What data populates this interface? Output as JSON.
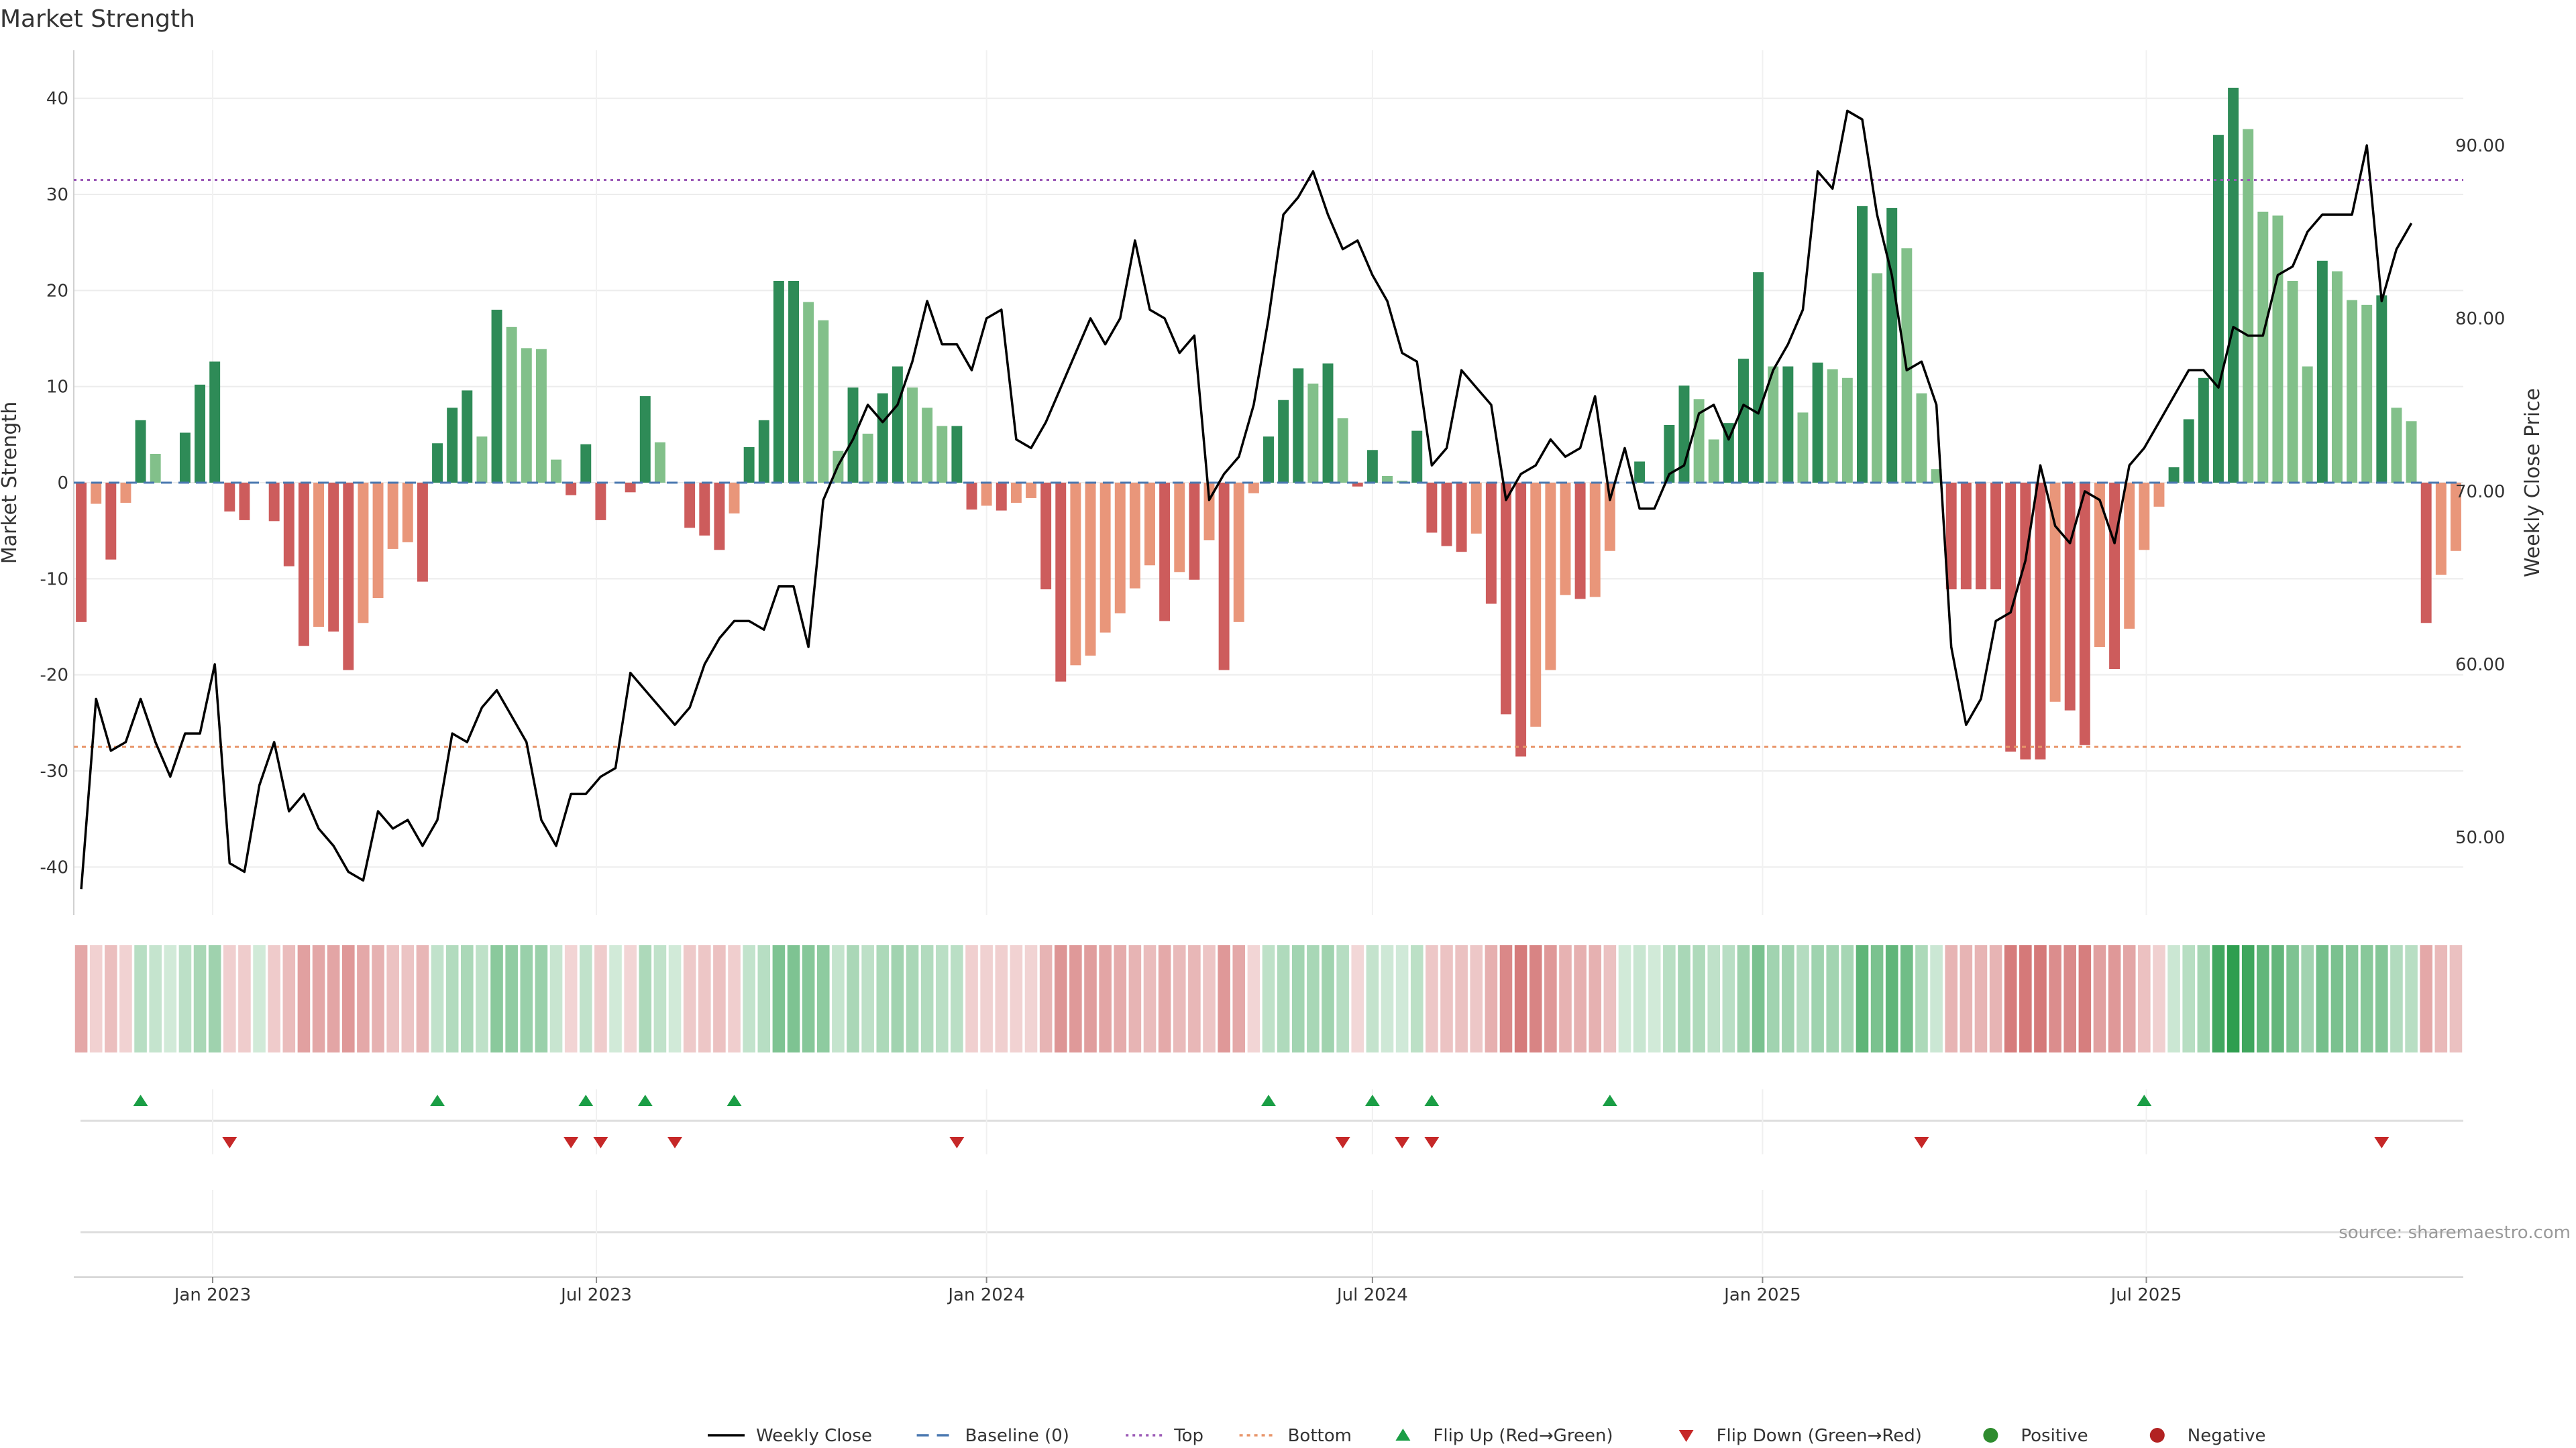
{
  "chart_data": {
    "type": "bar",
    "title": "Market Strength",
    "ylabel": "Market Strength",
    "y2label": "Weekly Close Price",
    "ylim": [
      -45,
      45
    ],
    "y2lim": [
      45.5,
      95.5
    ],
    "yticks": [
      40,
      30,
      20,
      10,
      0,
      -10,
      -20,
      -30,
      -40
    ],
    "y2ticks": [
      "90.00",
      "80.00",
      "70.00",
      "60.00",
      "50.00"
    ],
    "x_start": "2022-10-31",
    "x_step_days": 7,
    "xticks": [
      {
        "label": "Jan 2023",
        "date": "2023-01-01"
      },
      {
        "label": "Jul 2023",
        "date": "2023-07-01"
      },
      {
        "label": "Jan 2024",
        "date": "2024-01-01"
      },
      {
        "label": "Jul 2024",
        "date": "2024-07-01"
      },
      {
        "label": "Jan 2025",
        "date": "2025-01-01"
      },
      {
        "label": "Jul 2025",
        "date": "2025-07-01"
      }
    ],
    "top_line": 31.5,
    "bottom_line": -27.5,
    "grid": true,
    "legend_position": "bottom",
    "colors": {
      "pos_strong": "#2e8b57",
      "pos_weak": "#82c08a",
      "neg_strong": "#cd5c5c",
      "neg_weak": "#e9967a",
      "line": "#000000",
      "top": "#9b59b6",
      "bottom": "#e8956a",
      "baseline": "#4a78b0",
      "flip_up": "#1a9e45",
      "flip_down": "#c62828"
    },
    "strength": [
      -14.5,
      -2.2,
      -8,
      -2.1,
      6.5,
      3,
      0,
      5.2,
      10.2,
      12.6,
      -3,
      -3.9,
      0,
      -4,
      -8.7,
      -17,
      -15,
      -15.5,
      -19.5,
      -14.6,
      -12,
      -6.9,
      -6.2,
      -10.3,
      4.1,
      7.8,
      9.6,
      4.8,
      18,
      16.2,
      14,
      13.9,
      2.4,
      -1.3,
      4,
      -3.9,
      0,
      -1,
      9,
      4.2,
      0,
      -4.7,
      -5.5,
      -7,
      -3.2,
      3.7,
      6.5,
      21,
      21,
      18.8,
      16.9,
      3.3,
      9.9,
      5.1,
      9.3,
      12.1,
      9.9,
      7.8,
      5.9,
      5.9,
      -2.8,
      -2.4,
      -2.9,
      -2.1,
      -1.6,
      -11.1,
      -20.7,
      -19,
      -18,
      -15.6,
      -13.6,
      -11,
      -8.6,
      -14.4,
      -9.3,
      -10.1,
      -6,
      -19.5,
      -14.5,
      -1.1,
      4.8,
      8.6,
      11.9,
      10.3,
      12.4,
      6.7,
      -0.4,
      3.4,
      0.7,
      0.2,
      5.4,
      -5.2,
      -6.6,
      -7.2,
      -5.3,
      -12.6,
      -24.1,
      -28.5,
      -25.4,
      -19.5,
      -11.7,
      -12.1,
      -11.9,
      -7.1,
      0,
      2.2,
      0,
      6,
      10.1,
      8.7,
      4.5,
      6.2,
      12.9,
      21.9,
      12.1,
      12.1,
      7.3,
      12.5,
      11.8,
      10.9,
      28.8,
      21.8,
      28.6,
      24.4,
      9.3,
      1.4,
      -11.1,
      -11.1,
      -11.1,
      -11.1,
      -28,
      -28.8,
      -28.8,
      -22.8,
      -23.7,
      -27.3,
      -17.1,
      -19.4,
      -15.2,
      -7,
      -2.5,
      1.6,
      6.6,
      10.9,
      36.2,
      41.1,
      36.8,
      28.2,
      27.8,
      21,
      12.1,
      23.1,
      22,
      19,
      18.5,
      19.5,
      7.8,
      6.4,
      -14.6,
      -9.6,
      -7.1
    ],
    "weekly_close": [
      47,
      58,
      55,
      55.5,
      58,
      55.5,
      53.5,
      56,
      56,
      60,
      48.5,
      48,
      53,
      55.5,
      51.5,
      52.5,
      50.5,
      49.5,
      48,
      47.5,
      51.5,
      50.5,
      51,
      49.5,
      51,
      56,
      55.5,
      57.5,
      58.5,
      57,
      55.5,
      51,
      49.5,
      52.5,
      52.5,
      53.5,
      54,
      59.5,
      58.5,
      57.5,
      56.5,
      57.5,
      60,
      61.5,
      62.5,
      62.5,
      62,
      64.5,
      64.5,
      61,
      69.5,
      71.5,
      73,
      75,
      74,
      75,
      77.5,
      81,
      78.5,
      78.5,
      77,
      80,
      80.5,
      73,
      72.5,
      74,
      76,
      78,
      80,
      78.5,
      80,
      84.5,
      80.5,
      80,
      78,
      79,
      69.5,
      71,
      72,
      75,
      80,
      86,
      87,
      88.5,
      86,
      84,
      84.5,
      82.5,
      81,
      78,
      77.5,
      71.5,
      72.5,
      77,
      76,
      75,
      69.5,
      71,
      71.5,
      73,
      72,
      72.5,
      75.5,
      69.5,
      72.5,
      69,
      69,
      71,
      71.5,
      74.5,
      75,
      73,
      75,
      74.5,
      77,
      78.5,
      80.5,
      88.5,
      87.5,
      92,
      91.5,
      86,
      82.5,
      77,
      77.5,
      75,
      61,
      56.5,
      58,
      62.5,
      63,
      66,
      71.5,
      68,
      67,
      70,
      69.5,
      67,
      71.5,
      72.5,
      74,
      75.5,
      77,
      77,
      76,
      79.5,
      79,
      79,
      82.5,
      83,
      85,
      86,
      86,
      86,
      90,
      81,
      84,
      85.5
    ]
  },
  "heat_strip": {
    "label": ""
  },
  "flip_markers": {
    "up_indices": [
      4,
      24,
      34,
      38,
      44,
      80,
      87,
      91,
      103,
      139
    ],
    "down_indices": [
      10,
      33,
      35,
      40,
      59,
      85,
      89,
      91,
      124,
      155
    ]
  },
  "source_text": "source: sharemaestro.com",
  "legend": [
    {
      "label": "Weekly Close",
      "kind": "line"
    },
    {
      "label": "Baseline (0)",
      "kind": "dash"
    },
    {
      "label": "Top",
      "kind": "dotted"
    },
    {
      "label": "Bottom",
      "kind": "dotted2"
    },
    {
      "label": "Flip Up (Red→Green)",
      "kind": "tri-up"
    },
    {
      "label": "Flip Down (Green→Red)",
      "kind": "tri-down"
    },
    {
      "label": "Positive",
      "kind": "dot-green"
    },
    {
      "label": "Negative",
      "kind": "dot-red"
    }
  ]
}
